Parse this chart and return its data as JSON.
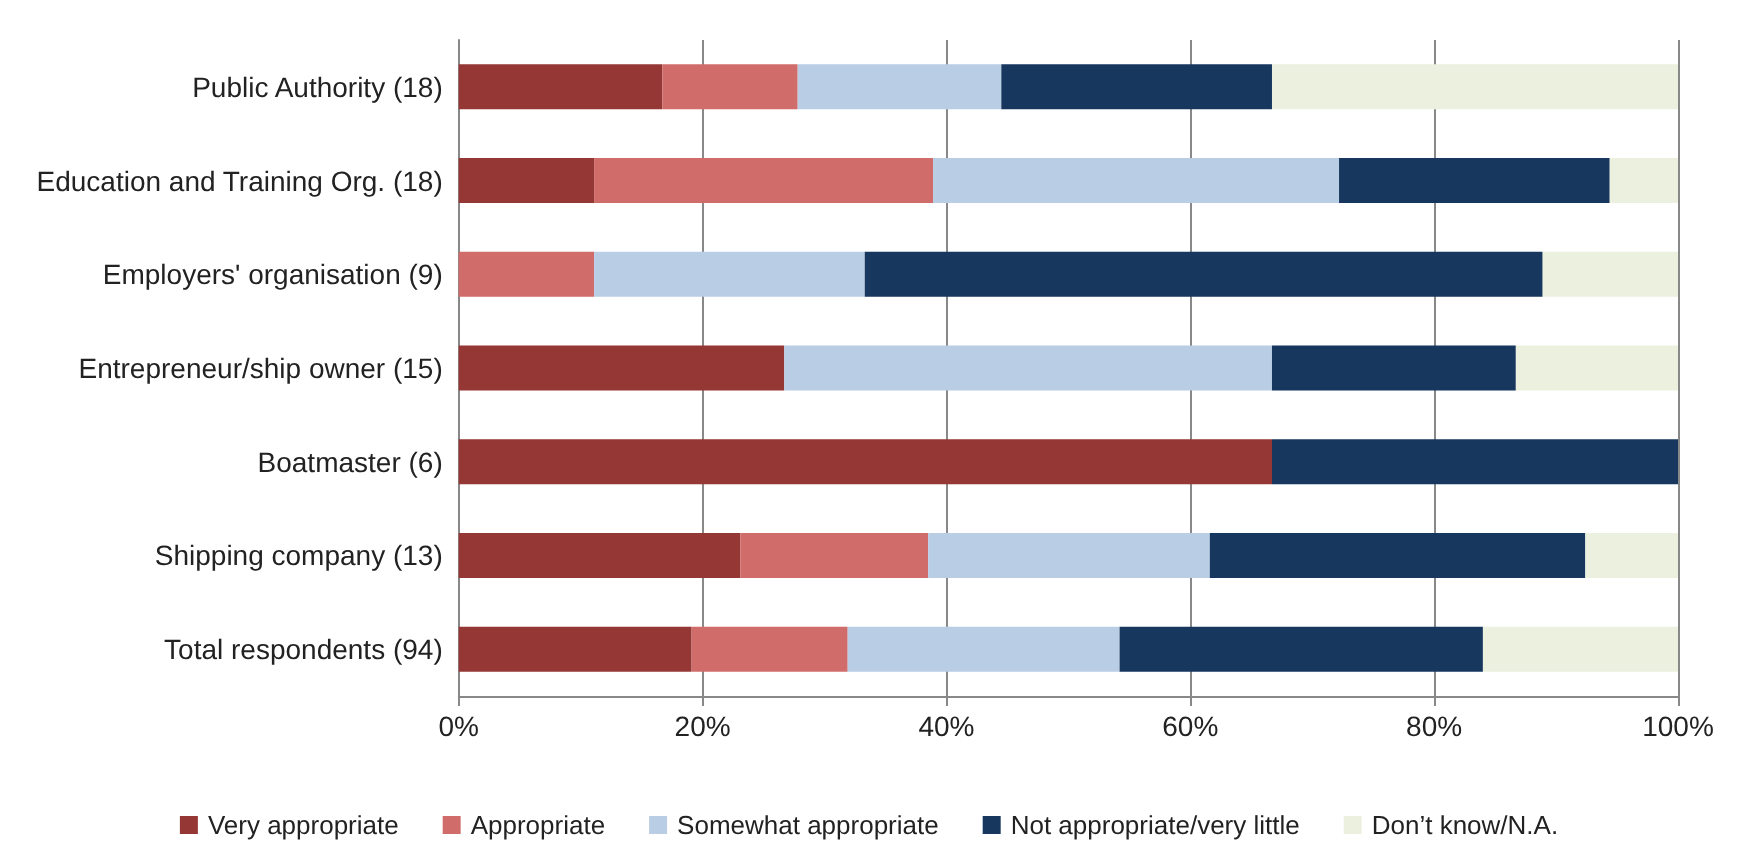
{
  "chart_data": {
    "type": "bar",
    "orientation": "horizontal",
    "stacked": true,
    "categories": [
      "Public Authority (18)",
      "Education and Training Org. (18)",
      "Employers' organisation (9)",
      "Entrepreneur/ship owner (15)",
      "Boatmaster (6)",
      "Shipping company (13)",
      "Total respondents (94)"
    ],
    "series": [
      {
        "name": "Very appropriate",
        "color": "#953735",
        "values": [
          16.7,
          11.1,
          0,
          26.7,
          66.7,
          23.1,
          19.1
        ]
      },
      {
        "name": "Appropriate",
        "color": "#d06d6a",
        "values": [
          11.1,
          27.8,
          11.1,
          0,
          0,
          15.4,
          12.8
        ]
      },
      {
        "name": "Somewhat appropriate",
        "color": "#b9cde5",
        "values": [
          16.7,
          33.3,
          22.2,
          40,
          0,
          23.1,
          22.3
        ]
      },
      {
        "name": "Not appropriate/very little",
        "color": "#17375e",
        "values": [
          22.2,
          22.2,
          55.6,
          20,
          33.3,
          30.8,
          29.8
        ]
      },
      {
        "name": "Don’t know/N.A.",
        "color": "#ebf1de",
        "values": [
          33.3,
          5.6,
          11.1,
          13.3,
          0,
          7.7,
          16.0
        ]
      }
    ],
    "xlim": [
      0,
      100
    ],
    "xticks": [
      {
        "value": 0,
        "label": "0%"
      },
      {
        "value": 20,
        "label": "20%"
      },
      {
        "value": 40,
        "label": "40%"
      },
      {
        "value": 60,
        "label": "60%"
      },
      {
        "value": 80,
        "label": "80%"
      },
      {
        "value": 100,
        "label": "100%"
      }
    ],
    "grid": "x",
    "legend": "bottom"
  }
}
